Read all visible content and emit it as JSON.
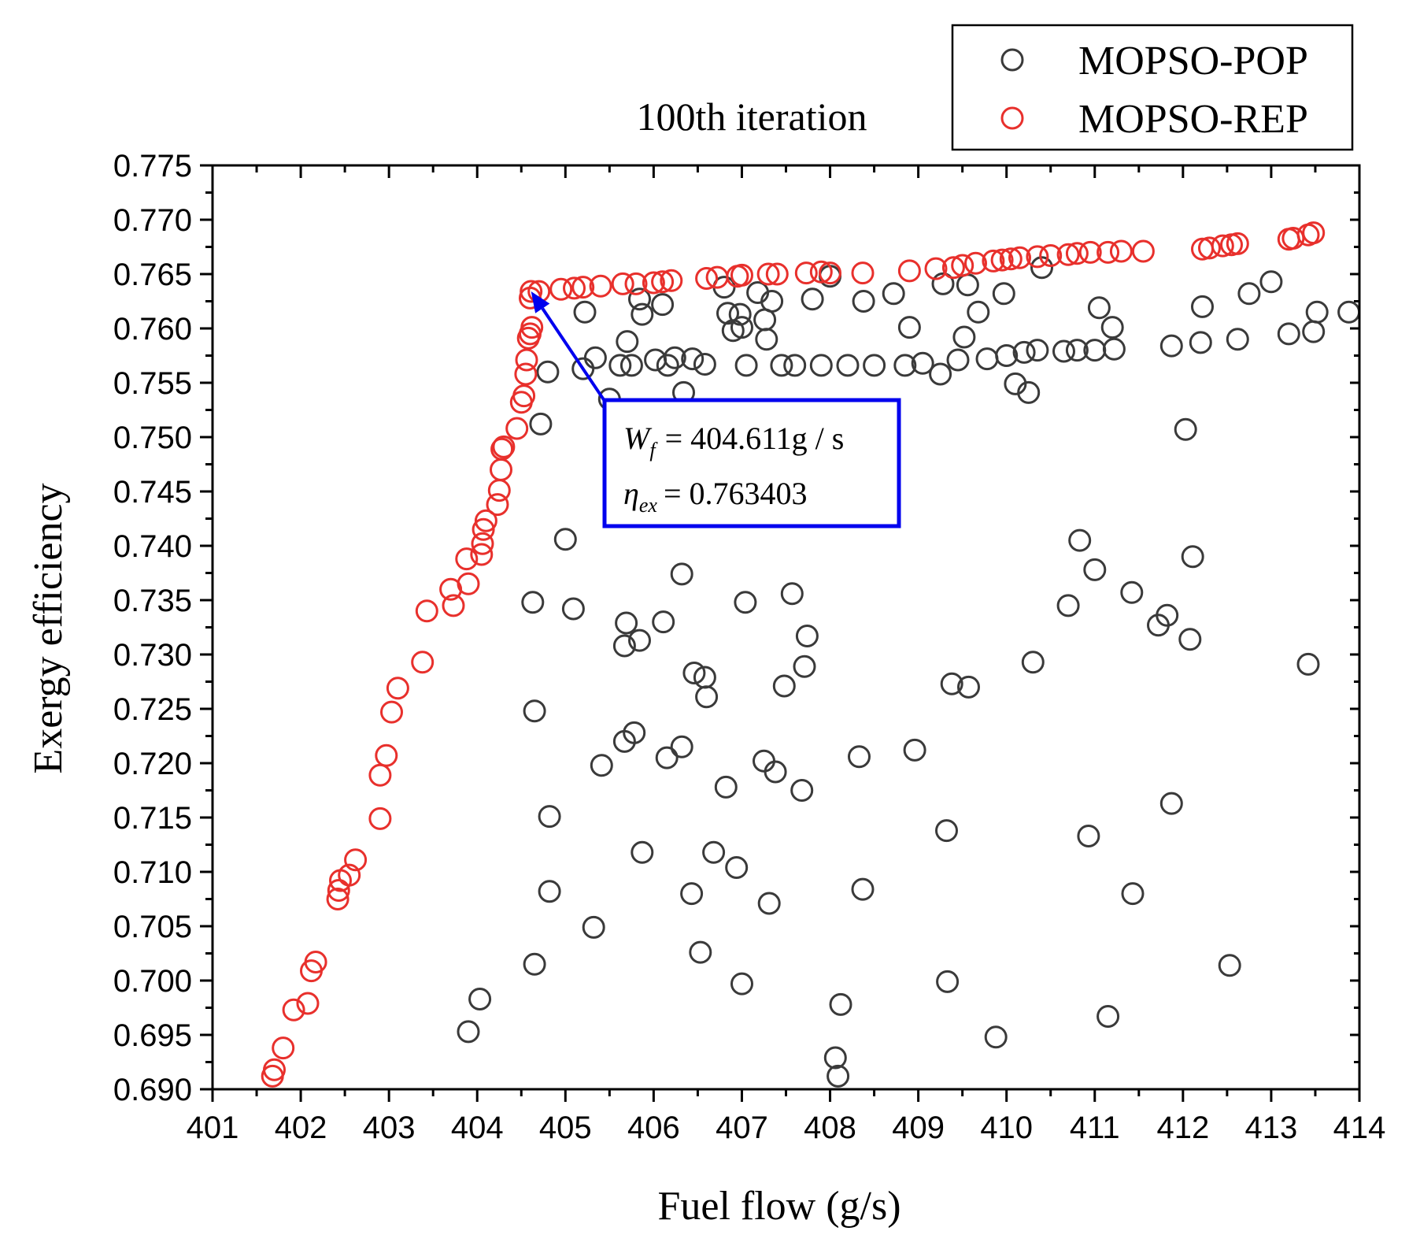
{
  "chart_data": {
    "type": "scatter",
    "title": "100th iteration",
    "xlabel": "Fuel flow (g/s)",
    "ylabel": "Exergy efficiency",
    "xlim": [
      401,
      414
    ],
    "ylim": [
      0.69,
      0.775
    ],
    "xticks": [
      "401",
      "402",
      "403",
      "404",
      "405",
      "406",
      "407",
      "408",
      "409",
      "410",
      "411",
      "412",
      "413",
      "414"
    ],
    "yticks": [
      "0.690",
      "0.695",
      "0.700",
      "0.705",
      "0.710",
      "0.715",
      "0.720",
      "0.725",
      "0.730",
      "0.735",
      "0.740",
      "0.745",
      "0.750",
      "0.755",
      "0.760",
      "0.765",
      "0.770",
      "0.775"
    ],
    "legend": {
      "position": "top-right"
    },
    "series": [
      {
        "name": "MOPSO-POP",
        "color": "#3a3a3a",
        "points": [
          [
            403.9,
            0.6953
          ],
          [
            404.03,
            0.6983
          ],
          [
            404.65,
            0.7015
          ],
          [
            404.82,
            0.7082
          ],
          [
            404.82,
            0.7151
          ],
          [
            404.65,
            0.7248
          ],
          [
            404.63,
            0.7348
          ],
          [
            405.0,
            0.7406
          ],
          [
            405.09,
            0.7342
          ],
          [
            405.32,
            0.7049
          ],
          [
            405.41,
            0.7198
          ],
          [
            405.67,
            0.7308
          ],
          [
            405.67,
            0.722
          ],
          [
            405.69,
            0.7329
          ],
          [
            405.78,
            0.7228
          ],
          [
            405.84,
            0.7313
          ],
          [
            405.87,
            0.7118
          ],
          [
            406.11,
            0.733
          ],
          [
            406.15,
            0.7205
          ],
          [
            406.32,
            0.7215
          ],
          [
            406.32,
            0.7374
          ],
          [
            406.43,
            0.708
          ],
          [
            406.46,
            0.7283
          ],
          [
            406.53,
            0.7026
          ],
          [
            406.58,
            0.7279
          ],
          [
            406.6,
            0.7261
          ],
          [
            406.68,
            0.7118
          ],
          [
            406.82,
            0.7178
          ],
          [
            406.94,
            0.7104
          ],
          [
            407.0,
            0.6997
          ],
          [
            407.04,
            0.7348
          ],
          [
            407.25,
            0.7202
          ],
          [
            407.31,
            0.7071
          ],
          [
            407.38,
            0.7192
          ],
          [
            407.48,
            0.7271
          ],
          [
            407.57,
            0.7356
          ],
          [
            407.68,
            0.7175
          ],
          [
            407.71,
            0.7289
          ],
          [
            407.74,
            0.7317
          ],
          [
            408.06,
            0.6929
          ],
          [
            408.09,
            0.6912
          ],
          [
            408.12,
            0.6978
          ],
          [
            408.33,
            0.7206
          ],
          [
            408.37,
            0.7084
          ],
          [
            408.96,
            0.7212
          ],
          [
            409.32,
            0.7138
          ],
          [
            409.33,
            0.6999
          ],
          [
            409.38,
            0.7273
          ],
          [
            409.57,
            0.727
          ],
          [
            409.88,
            0.6948
          ],
          [
            410.3,
            0.7293
          ],
          [
            410.7,
            0.7345
          ],
          [
            410.83,
            0.7405
          ],
          [
            410.93,
            0.7133
          ],
          [
            411.0,
            0.7378
          ],
          [
            411.15,
            0.6967
          ],
          [
            411.42,
            0.7357
          ],
          [
            411.43,
            0.708
          ],
          [
            411.72,
            0.7327
          ],
          [
            411.82,
            0.7336
          ],
          [
            411.87,
            0.7163
          ],
          [
            412.08,
            0.7314
          ],
          [
            412.11,
            0.739
          ],
          [
            412.53,
            0.7014
          ],
          [
            413.42,
            0.7291
          ],
          [
            404.72,
            0.7512
          ],
          [
            404.8,
            0.756
          ],
          [
            405.2,
            0.7563
          ],
          [
            405.22,
            0.7615
          ],
          [
            405.34,
            0.7573
          ],
          [
            405.5,
            0.7535
          ],
          [
            405.62,
            0.7566
          ],
          [
            405.7,
            0.7588
          ],
          [
            405.75,
            0.7566
          ],
          [
            405.84,
            0.7627
          ],
          [
            405.87,
            0.7613
          ],
          [
            406.02,
            0.7571
          ],
          [
            406.1,
            0.7622
          ],
          [
            406.16,
            0.7566
          ],
          [
            406.24,
            0.7573
          ],
          [
            406.34,
            0.7541
          ],
          [
            406.44,
            0.7572
          ],
          [
            406.58,
            0.7567
          ],
          [
            406.8,
            0.7638
          ],
          [
            406.84,
            0.7614
          ],
          [
            406.9,
            0.7598
          ],
          [
            406.98,
            0.7613
          ],
          [
            407.0,
            0.7601
          ],
          [
            407.05,
            0.7566
          ],
          [
            407.18,
            0.7633
          ],
          [
            407.26,
            0.7608
          ],
          [
            407.28,
            0.759
          ],
          [
            407.34,
            0.7625
          ],
          [
            407.45,
            0.7566
          ],
          [
            407.6,
            0.7566
          ],
          [
            407.8,
            0.7627
          ],
          [
            407.9,
            0.7566
          ],
          [
            408.0,
            0.7648
          ],
          [
            408.2,
            0.7566
          ],
          [
            408.38,
            0.7625
          ],
          [
            408.5,
            0.7566
          ],
          [
            408.72,
            0.7632
          ],
          [
            408.85,
            0.7566
          ],
          [
            408.9,
            0.7601
          ],
          [
            409.05,
            0.7568
          ],
          [
            409.25,
            0.7558
          ],
          [
            409.28,
            0.7641
          ],
          [
            409.45,
            0.7571
          ],
          [
            409.52,
            0.7592
          ],
          [
            409.56,
            0.764
          ],
          [
            409.68,
            0.7615
          ],
          [
            409.78,
            0.7572
          ],
          [
            409.97,
            0.7632
          ],
          [
            410.0,
            0.7575
          ],
          [
            410.1,
            0.7549
          ],
          [
            410.2,
            0.7578
          ],
          [
            410.25,
            0.7541
          ],
          [
            410.35,
            0.758
          ],
          [
            410.4,
            0.7656
          ],
          [
            410.65,
            0.7579
          ],
          [
            410.8,
            0.758
          ],
          [
            411.0,
            0.758
          ],
          [
            411.05,
            0.7619
          ],
          [
            411.2,
            0.7601
          ],
          [
            411.22,
            0.7581
          ],
          [
            411.87,
            0.7584
          ],
          [
            412.03,
            0.7507
          ],
          [
            412.2,
            0.7587
          ],
          [
            412.22,
            0.762
          ],
          [
            412.62,
            0.759
          ],
          [
            412.75,
            0.7632
          ],
          [
            413.0,
            0.7643
          ],
          [
            413.2,
            0.7595
          ],
          [
            413.48,
            0.7597
          ],
          [
            413.52,
            0.7615
          ],
          [
            413.88,
            0.7615
          ]
        ]
      },
      {
        "name": "MOPSO-REP",
        "color": "#e8302c",
        "points": [
          [
            401.68,
            0.6912
          ],
          [
            401.7,
            0.6918
          ],
          [
            401.8,
            0.6938
          ],
          [
            401.92,
            0.6973
          ],
          [
            402.08,
            0.6979
          ],
          [
            402.12,
            0.7009
          ],
          [
            402.17,
            0.7017
          ],
          [
            402.42,
            0.7075
          ],
          [
            402.43,
            0.7083
          ],
          [
            402.45,
            0.7092
          ],
          [
            402.55,
            0.7097
          ],
          [
            402.62,
            0.7111
          ],
          [
            402.9,
            0.7149
          ],
          [
            402.9,
            0.7189
          ],
          [
            402.97,
            0.7207
          ],
          [
            403.03,
            0.7247
          ],
          [
            403.1,
            0.7269
          ],
          [
            403.38,
            0.7293
          ],
          [
            403.43,
            0.734
          ],
          [
            403.7,
            0.736
          ],
          [
            403.73,
            0.7345
          ],
          [
            403.88,
            0.7388
          ],
          [
            403.9,
            0.7365
          ],
          [
            404.05,
            0.7392
          ],
          [
            404.06,
            0.7402
          ],
          [
            404.07,
            0.7415
          ],
          [
            404.1,
            0.7423
          ],
          [
            404.23,
            0.7438
          ],
          [
            404.25,
            0.7451
          ],
          [
            404.27,
            0.747
          ],
          [
            404.28,
            0.7489
          ],
          [
            404.3,
            0.7491
          ],
          [
            404.45,
            0.7508
          ],
          [
            404.5,
            0.7532
          ],
          [
            404.53,
            0.7538
          ],
          [
            404.55,
            0.7558
          ],
          [
            404.56,
            0.7571
          ],
          [
            404.58,
            0.7591
          ],
          [
            404.6,
            0.7595
          ],
          [
            404.62,
            0.7601
          ],
          [
            404.6,
            0.7628
          ],
          [
            404.611,
            0.763403
          ],
          [
            404.7,
            0.7634
          ],
          [
            404.95,
            0.7636
          ],
          [
            405.1,
            0.7637
          ],
          [
            405.2,
            0.7638
          ],
          [
            405.4,
            0.7639
          ],
          [
            405.65,
            0.7641
          ],
          [
            405.8,
            0.7641
          ],
          [
            406.0,
            0.7642
          ],
          [
            406.1,
            0.7643
          ],
          [
            406.2,
            0.7644
          ],
          [
            406.6,
            0.7646
          ],
          [
            406.72,
            0.7647
          ],
          [
            406.95,
            0.7648
          ],
          [
            407.0,
            0.7649
          ],
          [
            407.3,
            0.765
          ],
          [
            407.4,
            0.765
          ],
          [
            407.73,
            0.7651
          ],
          [
            407.9,
            0.7652
          ],
          [
            408.0,
            0.7651
          ],
          [
            408.37,
            0.7651
          ],
          [
            408.9,
            0.7653
          ],
          [
            409.2,
            0.7655
          ],
          [
            409.4,
            0.7656
          ],
          [
            409.5,
            0.7658
          ],
          [
            409.65,
            0.766
          ],
          [
            409.85,
            0.7662
          ],
          [
            409.95,
            0.7663
          ],
          [
            410.05,
            0.7664
          ],
          [
            410.15,
            0.7665
          ],
          [
            410.35,
            0.7666
          ],
          [
            410.5,
            0.7667
          ],
          [
            410.7,
            0.7668
          ],
          [
            410.8,
            0.7669
          ],
          [
            410.95,
            0.767
          ],
          [
            411.15,
            0.767
          ],
          [
            411.3,
            0.7671
          ],
          [
            411.55,
            0.7671
          ],
          [
            412.22,
            0.7673
          ],
          [
            412.3,
            0.7674
          ],
          [
            412.45,
            0.7676
          ],
          [
            412.55,
            0.7677
          ],
          [
            412.62,
            0.7678
          ],
          [
            413.2,
            0.7682
          ],
          [
            413.25,
            0.7683
          ],
          [
            413.42,
            0.7686
          ],
          [
            413.48,
            0.7688
          ]
        ]
      }
    ],
    "annotation": {
      "target": [
        404.611,
        0.763403
      ],
      "line1_var": "W",
      "line1_sub": "f",
      "line1_value": "= 404.611g / s",
      "line2_var": "η",
      "line2_sub": "ex",
      "line2_value": "= 0.763403",
      "color": "#0000ee"
    }
  }
}
